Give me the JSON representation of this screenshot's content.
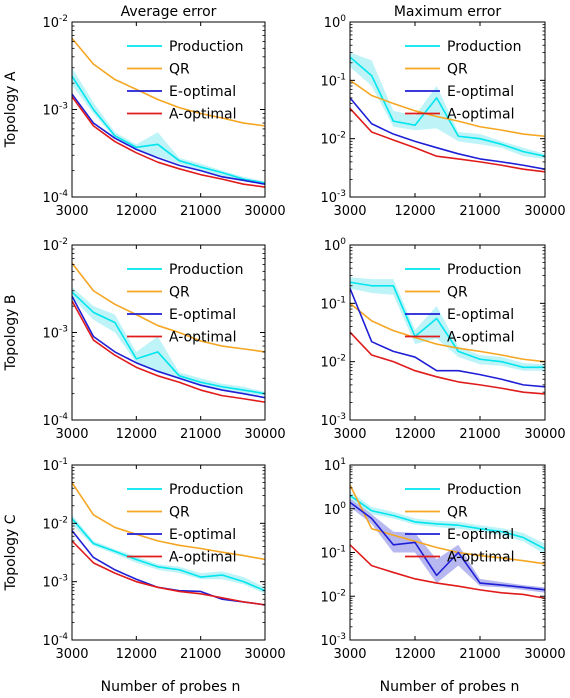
{
  "column_titles": [
    "Average error",
    "Maximum error"
  ],
  "row_labels": [
    "Topology A",
    "Topology B",
    "Topology C"
  ],
  "xlabel": "Number of probes n",
  "colors": {
    "Production": "#00e5ee",
    "Production_band": "#a8f0f5",
    "QR": "#f5a623",
    "E-optimal": "#1f1fd6",
    "E-optimal_band": "#a0a0ec",
    "A-optimal": "#e01b1b"
  },
  "chart_data": [
    {
      "type": "line",
      "id": "A-avg",
      "row": 0,
      "col": 0,
      "title": "Average error",
      "ylabel": "Topology A",
      "xlabel": "",
      "xlim": [
        3000,
        30000
      ],
      "xticks": [
        3000,
        12000,
        21000,
        30000
      ],
      "yscale": "log",
      "ylim": [
        -4,
        -2
      ],
      "ytick_exponents": [
        -4,
        -3,
        -2
      ],
      "legend": "top-right",
      "x": [
        3000,
        6000,
        9000,
        12000,
        15000,
        18000,
        21000,
        24000,
        27000,
        30000
      ],
      "series": [
        {
          "name": "Production",
          "values": [
            0.0024,
            0.001,
            0.0005,
            0.00037,
            0.0004,
            0.00026,
            0.00022,
            0.00019,
            0.00016,
            0.000145
          ],
          "band_low": [
            0.0019,
            0.0009,
            0.00047,
            0.00034,
            0.00029,
            0.00024,
            0.0002,
            0.00017,
            0.00015,
            0.00014
          ],
          "band_high": [
            0.003,
            0.0012,
            0.00055,
            0.0004,
            0.00055,
            0.00028,
            0.00024,
            0.0002,
            0.00017,
            0.00015
          ]
        },
        {
          "name": "QR",
          "values": [
            0.0065,
            0.0033,
            0.0022,
            0.0017,
            0.0013,
            0.00105,
            0.0009,
            0.0008,
            0.0007,
            0.00065
          ]
        },
        {
          "name": "E-optimal",
          "values": [
            0.0015,
            0.0007,
            0.00047,
            0.00035,
            0.00028,
            0.00023,
            0.0002,
            0.00017,
            0.000155,
            0.00014
          ]
        },
        {
          "name": "A-optimal",
          "values": [
            0.0014,
            0.00065,
            0.00043,
            0.00032,
            0.00025,
            0.00021,
            0.00018,
            0.00016,
            0.00014,
            0.00013
          ]
        }
      ]
    },
    {
      "type": "line",
      "id": "A-max",
      "row": 0,
      "col": 1,
      "title": "Maximum error",
      "ylabel": "",
      "xlabel": "",
      "xlim": [
        3000,
        30000
      ],
      "xticks": [
        3000,
        12000,
        21000,
        30000
      ],
      "yscale": "log",
      "ylim": [
        -3,
        0
      ],
      "ytick_exponents": [
        -3,
        -2,
        -1,
        0
      ],
      "legend": "top-right",
      "x": [
        3000,
        6000,
        9000,
        12000,
        15000,
        18000,
        21000,
        24000,
        27000,
        30000
      ],
      "series": [
        {
          "name": "Production",
          "values": [
            0.25,
            0.12,
            0.02,
            0.017,
            0.05,
            0.011,
            0.01,
            0.008,
            0.006,
            0.005
          ],
          "band_low": [
            0.17,
            0.08,
            0.016,
            0.014,
            0.015,
            0.009,
            0.008,
            0.007,
            0.005,
            0.0045
          ],
          "band_high": [
            0.3,
            0.22,
            0.03,
            0.025,
            0.08,
            0.013,
            0.012,
            0.009,
            0.007,
            0.0055
          ]
        },
        {
          "name": "QR",
          "values": [
            0.1,
            0.055,
            0.04,
            0.03,
            0.024,
            0.02,
            0.016,
            0.014,
            0.012,
            0.011
          ]
        },
        {
          "name": "E-optimal",
          "values": [
            0.05,
            0.018,
            0.012,
            0.009,
            0.007,
            0.0055,
            0.0045,
            0.004,
            0.0035,
            0.003
          ]
        },
        {
          "name": "A-optimal",
          "values": [
            0.033,
            0.013,
            0.0095,
            0.007,
            0.005,
            0.0045,
            0.004,
            0.0035,
            0.003,
            0.0027
          ]
        }
      ]
    },
    {
      "type": "line",
      "id": "B-avg",
      "row": 1,
      "col": 0,
      "title": "",
      "ylabel": "Topology B",
      "xlabel": "",
      "xlim": [
        3000,
        30000
      ],
      "xticks": [
        3000,
        12000,
        21000,
        30000
      ],
      "yscale": "log",
      "ylim": [
        -4,
        -2
      ],
      "ytick_exponents": [
        -4,
        -3,
        -2
      ],
      "legend": "top-right",
      "x": [
        3000,
        6000,
        9000,
        12000,
        15000,
        18000,
        21000,
        24000,
        27000,
        30000
      ],
      "series": [
        {
          "name": "Production",
          "values": [
            0.0029,
            0.0017,
            0.0013,
            0.0005,
            0.0006,
            0.00032,
            0.00027,
            0.00024,
            0.00022,
            0.0002
          ],
          "band_low": [
            0.0025,
            0.0014,
            0.001,
            0.00045,
            0.00035,
            0.0003,
            0.00025,
            0.00022,
            0.0002,
            0.00019
          ],
          "band_high": [
            0.0033,
            0.002,
            0.0016,
            0.0006,
            0.0009,
            0.00035,
            0.0003,
            0.00026,
            0.00024,
            0.00021
          ]
        },
        {
          "name": "QR",
          "values": [
            0.0062,
            0.003,
            0.0021,
            0.0016,
            0.0012,
            0.001,
            0.0008,
            0.0007,
            0.00065,
            0.0006
          ]
        },
        {
          "name": "E-optimal",
          "values": [
            0.0026,
            0.0009,
            0.0006,
            0.00045,
            0.00036,
            0.0003,
            0.00025,
            0.00022,
            0.0002,
            0.00018
          ]
        },
        {
          "name": "A-optimal",
          "values": [
            0.0023,
            0.00082,
            0.00055,
            0.0004,
            0.00032,
            0.00027,
            0.00022,
            0.00019,
            0.000175,
            0.00016
          ]
        }
      ]
    },
    {
      "type": "line",
      "id": "B-max",
      "row": 1,
      "col": 1,
      "title": "",
      "ylabel": "",
      "xlabel": "",
      "xlim": [
        3000,
        30000
      ],
      "xticks": [
        3000,
        12000,
        21000,
        30000
      ],
      "yscale": "log",
      "ylim": [
        -3,
        0
      ],
      "ytick_exponents": [
        -3,
        -2,
        -1,
        0
      ],
      "legend": "top-right",
      "x": [
        3000,
        6000,
        9000,
        12000,
        15000,
        18000,
        21000,
        24000,
        27000,
        30000
      ],
      "series": [
        {
          "name": "Production",
          "values": [
            0.23,
            0.2,
            0.2,
            0.027,
            0.055,
            0.015,
            0.011,
            0.01,
            0.008,
            0.008
          ],
          "band_low": [
            0.18,
            0.15,
            0.14,
            0.02,
            0.025,
            0.012,
            0.009,
            0.0085,
            0.007,
            0.007
          ],
          "band_high": [
            0.28,
            0.26,
            0.26,
            0.035,
            0.09,
            0.018,
            0.013,
            0.012,
            0.0095,
            0.009
          ]
        },
        {
          "name": "QR",
          "values": [
            0.1,
            0.05,
            0.034,
            0.026,
            0.02,
            0.017,
            0.015,
            0.013,
            0.011,
            0.01
          ]
        },
        {
          "name": "E-optimal",
          "values": [
            0.18,
            0.022,
            0.015,
            0.012,
            0.007,
            0.007,
            0.006,
            0.005,
            0.004,
            0.0037
          ]
        },
        {
          "name": "A-optimal",
          "values": [
            0.032,
            0.013,
            0.01,
            0.007,
            0.0055,
            0.0045,
            0.004,
            0.0035,
            0.003,
            0.0028
          ]
        }
      ]
    },
    {
      "type": "line",
      "id": "C-avg",
      "row": 2,
      "col": 0,
      "title": "",
      "ylabel": "Topology C",
      "xlabel": "Number of probes n",
      "xlim": [
        3000,
        30000
      ],
      "xticks": [
        3000,
        12000,
        21000,
        30000
      ],
      "yscale": "log",
      "ylim": [
        -4,
        -1
      ],
      "ytick_exponents": [
        -4,
        -3,
        -2,
        -1
      ],
      "legend": "top-right",
      "x": [
        3000,
        6000,
        9000,
        12000,
        15000,
        18000,
        21000,
        24000,
        27000,
        30000
      ],
      "series": [
        {
          "name": "Production",
          "values": [
            0.012,
            0.0045,
            0.0033,
            0.0024,
            0.0018,
            0.0016,
            0.0012,
            0.0013,
            0.001,
            0.0007
          ],
          "band_low": [
            0.0095,
            0.0041,
            0.003,
            0.0021,
            0.0016,
            0.0014,
            0.0011,
            0.0011,
            0.0009,
            0.00062
          ],
          "band_high": [
            0.014,
            0.005,
            0.0036,
            0.0027,
            0.002,
            0.0018,
            0.0014,
            0.0015,
            0.0012,
            0.0008
          ]
        },
        {
          "name": "QR",
          "values": [
            0.05,
            0.014,
            0.0085,
            0.0065,
            0.005,
            0.0042,
            0.0037,
            0.0032,
            0.0028,
            0.0024
          ]
        },
        {
          "name": "E-optimal",
          "values": [
            0.0075,
            0.0026,
            0.0016,
            0.0011,
            0.0008,
            0.0007,
            0.00068,
            0.0005,
            0.00045,
            0.0004
          ]
        },
        {
          "name": "A-optimal",
          "values": [
            0.005,
            0.0021,
            0.0014,
            0.001,
            0.0008,
            0.00068,
            0.00062,
            0.00053,
            0.00045,
            0.0004
          ]
        }
      ]
    },
    {
      "type": "line",
      "id": "C-max",
      "row": 2,
      "col": 1,
      "title": "",
      "ylabel": "",
      "xlabel": "Number of probes n",
      "xlim": [
        3000,
        30000
      ],
      "xticks": [
        3000,
        12000,
        21000,
        30000
      ],
      "yscale": "log",
      "ylim": [
        -3,
        1
      ],
      "ytick_exponents": [
        -3,
        -2,
        -1,
        0,
        1
      ],
      "legend": "top-right",
      "x": [
        3000,
        6000,
        9000,
        12000,
        15000,
        18000,
        21000,
        24000,
        27000,
        30000
      ],
      "series": [
        {
          "name": "Production",
          "values": [
            2.0,
            0.9,
            0.7,
            0.5,
            0.45,
            0.42,
            0.35,
            0.3,
            0.22,
            0.12
          ],
          "band_low": [
            1.6,
            0.75,
            0.6,
            0.43,
            0.38,
            0.35,
            0.3,
            0.25,
            0.18,
            0.09
          ],
          "band_high": [
            2.5,
            1.1,
            0.85,
            0.6,
            0.53,
            0.5,
            0.42,
            0.36,
            0.28,
            0.16
          ]
        },
        {
          "name": "QR",
          "values": [
            3.5,
            0.35,
            0.25,
            0.18,
            0.13,
            0.1,
            0.085,
            0.075,
            0.065,
            0.055
          ]
        },
        {
          "name": "E-optimal",
          "values": [
            1.4,
            0.6,
            0.15,
            0.17,
            0.03,
            0.1,
            0.02,
            0.018,
            0.016,
            0.014
          ],
          "band_low": [
            1.1,
            0.45,
            0.1,
            0.1,
            0.02,
            0.05,
            0.017,
            0.016,
            0.014,
            0.012
          ],
          "band_high": [
            1.7,
            0.75,
            0.3,
            0.28,
            0.07,
            0.15,
            0.025,
            0.021,
            0.018,
            0.016
          ]
        },
        {
          "name": "A-optimal",
          "values": [
            0.15,
            0.05,
            0.035,
            0.025,
            0.02,
            0.017,
            0.014,
            0.012,
            0.011,
            0.009
          ]
        }
      ]
    }
  ]
}
